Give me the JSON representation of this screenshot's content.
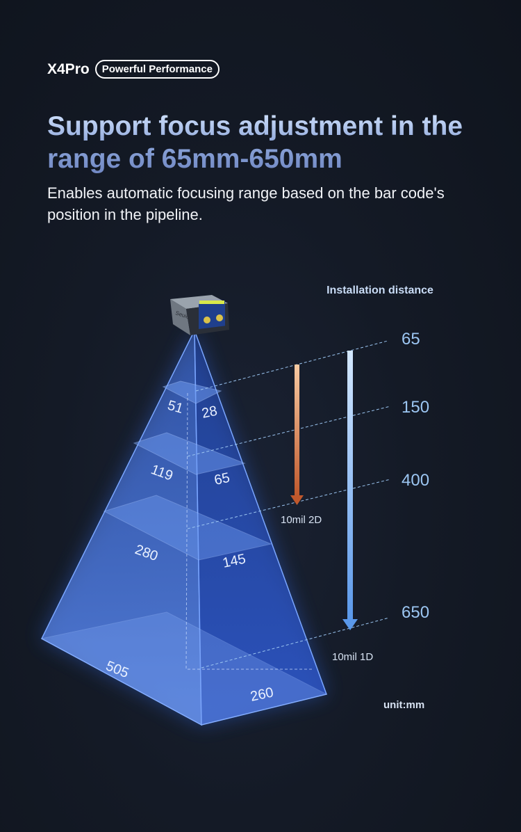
{
  "header": {
    "model": "X4Pro",
    "badge": "Powerful Performance"
  },
  "headline": "Support focus adjustment in the range of 65mm-650mm",
  "description": "Enables automatic focusing range based on the bar code's position in the pipeline.",
  "device": {
    "logo": "Seuic"
  },
  "diagram": {
    "installation_label": "Installation distance",
    "distances": [
      "65",
      "150",
      "400",
      "650"
    ],
    "fov_widths_left": [
      "51",
      "119",
      "280",
      "505"
    ],
    "fov_widths_right": [
      "28",
      "65",
      "145",
      "260"
    ],
    "arrow_2d_label": "10mil 2D",
    "arrow_1d_label": "10mil 1D",
    "unit": "unit:mm",
    "colors": {
      "arrow_2d": "#e07a4a",
      "arrow_1d": "#6fa4ea",
      "distance_text": "#9cc6f2",
      "pyramid": "#3a66d6"
    }
  }
}
